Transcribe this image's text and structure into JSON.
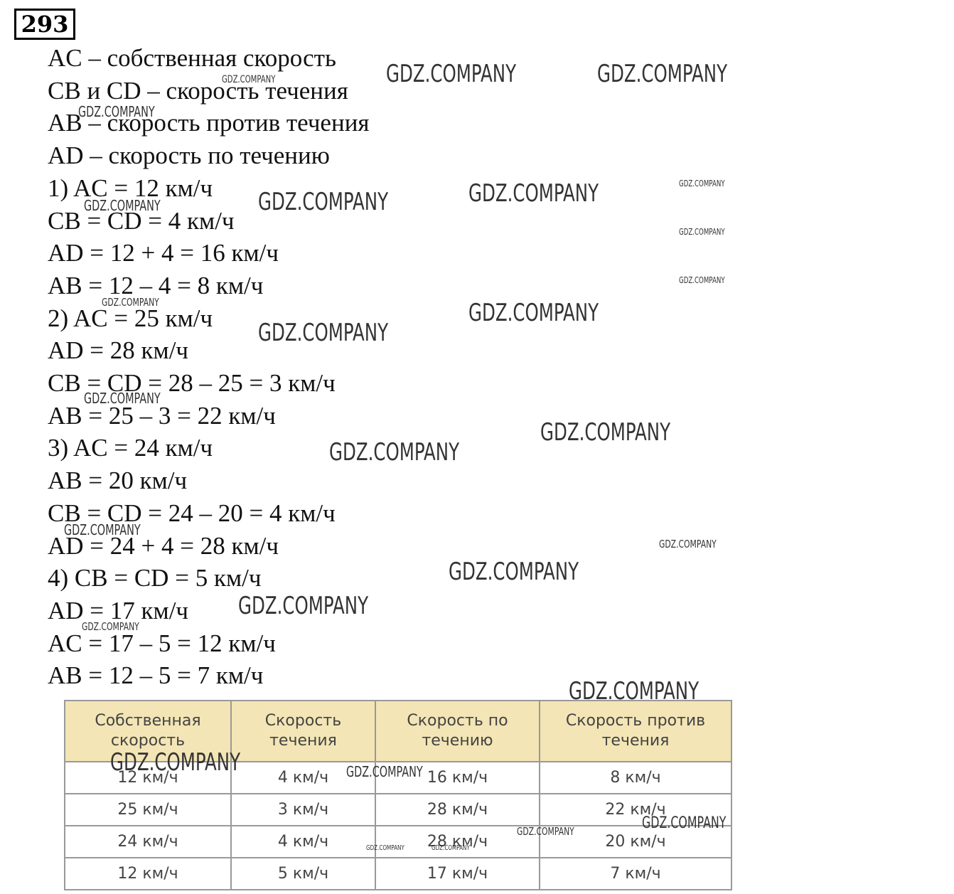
{
  "header": {
    "number": "293"
  },
  "lines": [
    "AC – собственная скорость",
    "CB и CD – скорость течения",
    "AB – скорость против течения",
    "AD – скорость по течению",
    "1) AC = 12 км/ч",
    "CB = CD = 4 км/ч",
    "AD = 12 + 4 = 16 км/ч",
    "AB = 12 – 4 = 8 км/ч",
    "2) AC = 25 км/ч",
    "AD = 28 км/ч",
    "CB = CD = 28 – 25 = 3 км/ч",
    "AB = 25 – 3 = 22 км/ч",
    "3) AC = 24 км/ч",
    "AB = 20 км/ч",
    "CB = CD = 24 – 20 = 4 км/ч",
    "AD = 24 + 4 = 28 км/ч",
    "4) CB = CD = 5 км/ч",
    "AD = 17 км/ч",
    "AC = 17 – 5 = 12 км/ч",
    "AB = 12 – 5 = 7 км/ч"
  ],
  "table": {
    "header": [
      "Собственная скорость",
      "Скорость течения",
      "Скорость по течению",
      "Скорость против течения"
    ],
    "rows": [
      [
        "12 км/ч",
        "4 км/ч",
        "16 км/ч",
        "8 км/ч"
      ],
      [
        "25 км/ч",
        "3 км/ч",
        "28 км/ч",
        "22 км/ч"
      ],
      [
        "24 км/ч",
        "4 км/ч",
        "28 км/ч",
        "20 км/ч"
      ],
      [
        "12 км/ч",
        "5 км/ч",
        "17 км/ч",
        "7 км/ч"
      ]
    ]
  },
  "watermarks": [
    "GDZ.COMPANY",
    "GDZ.COMPANY",
    "GDZ.COMPANY",
    "GDZ.COMPANY",
    "GDZ.COMPANY",
    "GDZ.COMPANY",
    "GDZ.COMPANY",
    "GDZ.COMPANY",
    "GDZ.COMPANY",
    "GDZ.COMPANY",
    "GDZ.COMPANY",
    "GDZ.COMPANY",
    "GDZ.COMPANY",
    "GDZ.COMPANY",
    "GDZ.COMPANY",
    "GDZ.COMPANY",
    "GDZ.COMPANY",
    "GDZ.COMPANY",
    "GDZ.COMPANY",
    "GDZ.COMPANY",
    "GDZ.COMPANY",
    "GDZ.COMPANY",
    "GDZ.COMPANY",
    "GDZ.COMPANY",
    "GDZ.COMPANY",
    "GDZ.COMPANY",
    "GDZ.COMPANY",
    "GDZ.COMPANY"
  ]
}
